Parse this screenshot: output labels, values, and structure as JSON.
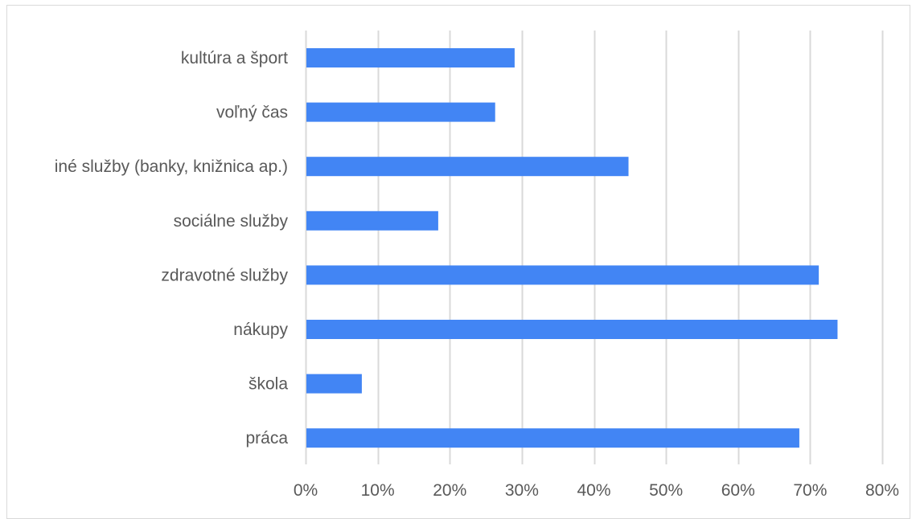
{
  "colors": {
    "bar": "#4285f4",
    "grid": "#d9d9d9",
    "text": "#595959"
  },
  "chart_data": {
    "type": "bar",
    "orientation": "horizontal",
    "title": "",
    "xlabel": "",
    "ylabel": "",
    "categories": [
      "kultúra a šport",
      "voľný čas",
      "iné služby (banky, knižnica ap.)",
      "sociálne služby",
      "zdravotné služby",
      "nákupy",
      "škola",
      "práca"
    ],
    "values": [
      29,
      26.3,
      44.8,
      18.4,
      71.2,
      73.8,
      7.8,
      68.5
    ],
    "value_unit": "%",
    "xlim": [
      0,
      80
    ],
    "x_ticks": [
      {
        "value": 0,
        "label": "0%"
      },
      {
        "value": 10,
        "label": "10%"
      },
      {
        "value": 20,
        "label": "20%"
      },
      {
        "value": 30,
        "label": "30%"
      },
      {
        "value": 40,
        "label": "40%"
      },
      {
        "value": 50,
        "label": "50%"
      },
      {
        "value": 60,
        "label": "60%"
      },
      {
        "value": 70,
        "label": "70%"
      },
      {
        "value": 80,
        "label": "80%"
      }
    ],
    "grid": true,
    "legend": "none"
  }
}
